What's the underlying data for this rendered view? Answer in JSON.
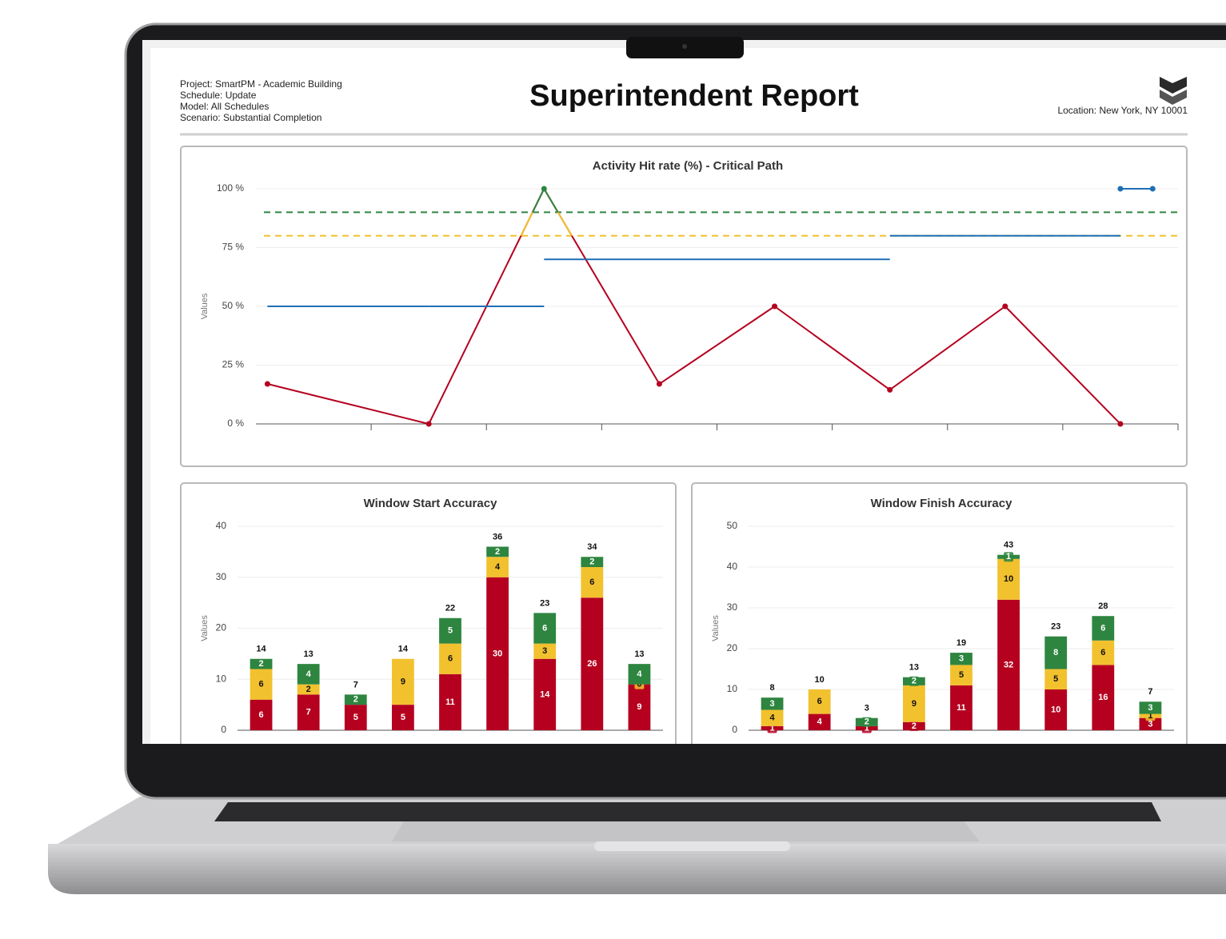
{
  "header": {
    "info": [
      "Project: SmartPM - Academic Building",
      "Schedule: Update",
      "Model: All Schedules",
      "Scenario: Substantial Completion"
    ],
    "title": "Superintendent Report",
    "location": "Location: New York, NY 10001"
  },
  "chart_data": [
    {
      "type": "line",
      "title": "Activity Hit rate (%) - Critical Path",
      "y_label": "Values",
      "categories": [
        null,
        null,
        null,
        null,
        null,
        null,
        null,
        null
      ],
      "series": [
        {
          "color": "#b5001f",
          "values": [
            17,
            0,
            100,
            17,
            50,
            14.5,
            50,
            0
          ]
        },
        {
          "color": "#1f6fb5",
          "step": true,
          "values": [
            50,
            50,
            70,
            70,
            70,
            80,
            80,
            100
          ]
        }
      ],
      "thresholds": [
        {
          "value": 90,
          "color": "#2e8540"
        },
        {
          "value": 80,
          "color": "#f2c12e"
        }
      ],
      "ylim": [
        0,
        100
      ],
      "yticks": [
        {
          "value": 0,
          "label": "0 %"
        },
        {
          "value": 25,
          "label": "25 %"
        },
        {
          "value": 50,
          "label": "50 %"
        },
        {
          "value": 75,
          "label": "75 %"
        },
        {
          "value": 100,
          "label": "100 %"
        }
      ],
      "grid": true
    },
    {
      "type": "stacked_bar",
      "title": "Window Start Accuracy",
      "y_label": "Values",
      "categories": [
        null,
        null,
        null,
        null,
        null,
        null,
        null,
        null,
        null
      ],
      "series": [
        {
          "color": "#b5001f",
          "values": [
            6,
            7,
            5,
            5,
            11,
            30,
            14,
            26,
            9
          ]
        },
        {
          "color": "#f2c12e",
          "values": [
            6,
            2,
            null,
            9,
            6,
            4,
            3,
            6,
            0
          ]
        },
        {
          "color": "#2e8540",
          "values": [
            2,
            4,
            2,
            null,
            5,
            2,
            6,
            2,
            4
          ]
        }
      ],
      "totals": [
        14,
        13,
        7,
        14,
        22,
        36,
        23,
        34,
        13
      ],
      "ylim": [
        0,
        40
      ],
      "yticks": [
        0,
        10,
        20,
        30,
        40
      ],
      "grid": true
    },
    {
      "type": "stacked_bar",
      "title": "Window Finish Accuracy",
      "y_label": "Values",
      "categories": [
        null,
        null,
        null,
        null,
        null,
        null,
        null,
        null,
        null
      ],
      "series": [
        {
          "color": "#b5001f",
          "values": [
            1,
            4,
            1,
            2,
            11,
            32,
            10,
            16,
            3
          ]
        },
        {
          "color": "#f2c12e",
          "values": [
            4,
            6,
            null,
            9,
            5,
            10,
            5,
            6,
            1
          ]
        },
        {
          "color": "#2e8540",
          "values": [
            3,
            null,
            2,
            2,
            3,
            1,
            8,
            6,
            3
          ]
        }
      ],
      "totals": [
        8,
        10,
        3,
        13,
        19,
        43,
        23,
        28,
        7
      ],
      "ylim": [
        0,
        50
      ],
      "yticks": [
        0,
        10,
        20,
        30,
        40,
        50
      ],
      "grid": true
    }
  ]
}
